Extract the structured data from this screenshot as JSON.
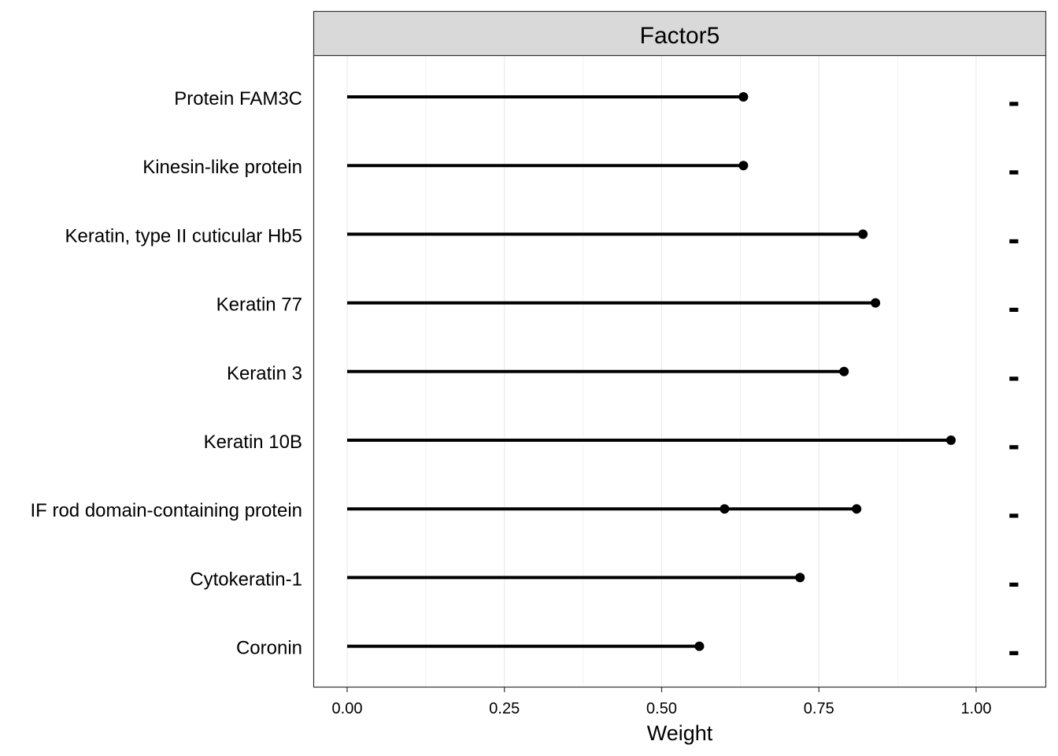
{
  "chart_data": {
    "type": "lollipop",
    "facet_title": "Factor5",
    "xlabel": "Weight",
    "ylabel": "",
    "xlim": [
      -0.105,
      1.22
    ],
    "x_ticks": [
      0.0,
      0.25,
      0.5,
      0.75,
      1.0
    ],
    "x_tick_labels": [
      "0.00",
      "0.25",
      "0.50",
      "0.75",
      "1.00"
    ],
    "grid": true,
    "categories": [
      "Protein FAM3C",
      "Kinesin-like protein",
      "Keratin, type II cuticular Hb5",
      "Keratin 77",
      "Keratin 3",
      "Keratin 10B",
      "IF rod domain-containing protein",
      "Cytokeratin-1",
      "Coronin"
    ],
    "points": [
      {
        "category": "Protein FAM3C",
        "values": [
          0.63
        ]
      },
      {
        "category": "Kinesin-like protein",
        "values": [
          0.63
        ]
      },
      {
        "category": "Keratin, type II cuticular Hb5",
        "values": [
          0.82
        ]
      },
      {
        "category": "Keratin 77",
        "values": [
          0.84
        ]
      },
      {
        "category": "Keratin 3",
        "values": [
          0.79
        ]
      },
      {
        "category": "Keratin 10B",
        "values": [
          0.96
        ]
      },
      {
        "category": "IF rod domain-containing protein",
        "values": [
          0.6,
          0.81
        ]
      },
      {
        "category": "Cytokeratin-1",
        "values": [
          0.72
        ]
      },
      {
        "category": "Coronin",
        "values": [
          0.56
        ]
      }
    ],
    "sign_labels": [
      "-",
      "-",
      "-",
      "-",
      "-",
      "-",
      "-",
      "-",
      "-"
    ],
    "sign_x": 1.06,
    "colors": {
      "strip_fill": "#d9d9d9",
      "grid": "#ebebeb",
      "line": "#000000",
      "point": "#000000"
    }
  }
}
